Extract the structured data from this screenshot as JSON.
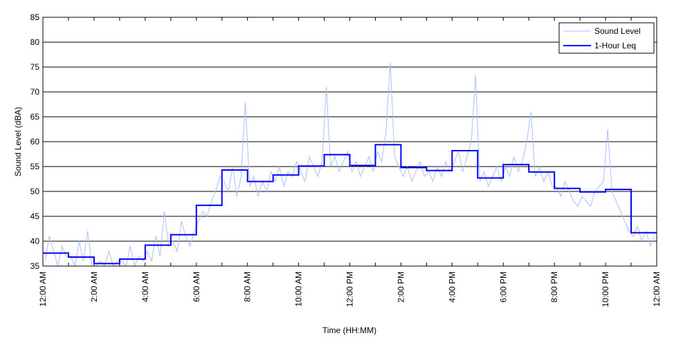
{
  "chart_data": {
    "type": "line",
    "title": "",
    "xlabel": "Time (HH:MM)",
    "ylabel": "Sound Level (dBA)",
    "xlim_hours": [
      0,
      24
    ],
    "ylim": [
      35,
      85
    ],
    "yticks": [
      35,
      40,
      45,
      50,
      55,
      60,
      65,
      70,
      75,
      80,
      85
    ],
    "xtick_hours": [
      0,
      2,
      4,
      6,
      8,
      10,
      12,
      14,
      16,
      18,
      20,
      22,
      24
    ],
    "xtick_labels": [
      "12:00 AM",
      "2:00 AM",
      "4:00 AM",
      "6:00 AM",
      "8:00 AM",
      "10:00 AM",
      "12:00 PM",
      "2:00 PM",
      "4:00 PM",
      "6:00 PM",
      "8:00 PM",
      "10:00 PM",
      "12:00 AM"
    ],
    "grid": "horizontal",
    "legend_position": "top-right",
    "series": [
      {
        "name": "Sound Level",
        "color": "#a8c0ff",
        "sample_interval_minutes": 10,
        "values": [
          36,
          41,
          38,
          35,
          39,
          37,
          37,
          35,
          40,
          36,
          42,
          35,
          35,
          36,
          35,
          38,
          35,
          36,
          36,
          35,
          39,
          35,
          37,
          36,
          38,
          36,
          41,
          37,
          46,
          39,
          40,
          38,
          44,
          41,
          39,
          42,
          44,
          46,
          45,
          48,
          50,
          53,
          52,
          50,
          55,
          49,
          53,
          68,
          51,
          53,
          49,
          52,
          50,
          54,
          52,
          55,
          51,
          54,
          53,
          56,
          54,
          52,
          57,
          55,
          53,
          56,
          71,
          55,
          57,
          54,
          56,
          58,
          54,
          56,
          53,
          55,
          57,
          54,
          58,
          56,
          62,
          76,
          57,
          55,
          53,
          55,
          52,
          54,
          56,
          53,
          54,
          52,
          55,
          53,
          56,
          54,
          56,
          58,
          54,
          57,
          60,
          73.5,
          52,
          54,
          51,
          53,
          55,
          52,
          55,
          53,
          57,
          54,
          56,
          60,
          66,
          53,
          55,
          52,
          54,
          51,
          51,
          49,
          52,
          50,
          48,
          47,
          49,
          48,
          47,
          50,
          51,
          52,
          62.5,
          50,
          48,
          46,
          44,
          42,
          41,
          43,
          40,
          42,
          39,
          41
        ]
      },
      {
        "name": "1-Hour Leq",
        "color": "#0000ff",
        "step_hours": 1,
        "values": [
          37.6,
          36.8,
          35.5,
          36.4,
          39.2,
          41.3,
          47.2,
          54.3,
          52.0,
          53.3,
          55.1,
          57.4,
          55.2,
          59.4,
          54.8,
          54.2,
          58.2,
          52.7,
          55.4,
          53.9,
          50.6,
          49.9,
          50.4,
          41.7
        ]
      }
    ]
  }
}
